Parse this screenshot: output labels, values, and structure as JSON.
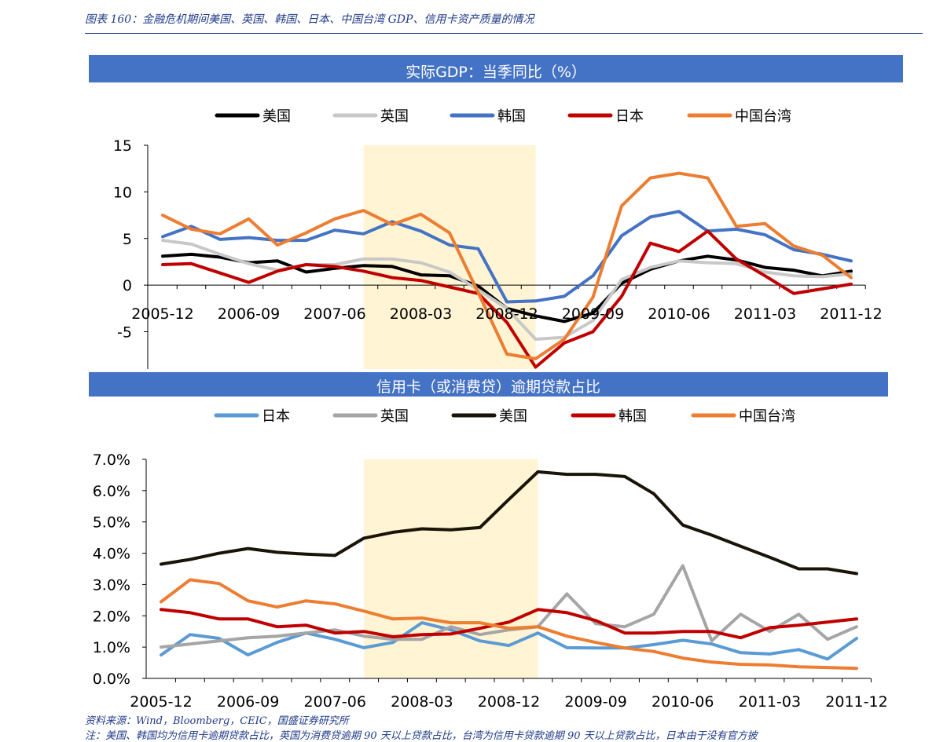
{
  "figure_title": "图表 160：金融危机期间美国、英国、韩国、日本、中国台湾 GDP、信用卡资产质量的情况",
  "source": "资料来源：Wind，Bloomberg，CEIC，国盛证券研究所",
  "note": "注：美国、韩国均为信用卡逾期贷款占比，英国为消费贷逾期 90 天以上贷款占比，台湾为信用卡贷款逾期 90 天以上贷款占比，日本由于没有官方披",
  "chart_data": [
    {
      "type": "line",
      "title": "实际GDP：当季同比（%）",
      "x": [
        "2005-12",
        "2006-03",
        "2006-06",
        "2006-09",
        "2006-12",
        "2007-03",
        "2007-06",
        "2007-09",
        "2007-12",
        "2008-03",
        "2008-06",
        "2008-09",
        "2008-12",
        "2009-03",
        "2009-06",
        "2009-09",
        "2009-12",
        "2010-03",
        "2010-06",
        "2010-09",
        "2010-12",
        "2011-03",
        "2011-06",
        "2011-09",
        "2011-12"
      ],
      "tick_labels": [
        "2005-12",
        "2006-09",
        "2007-06",
        "2008-03",
        "2008-12",
        "2009-09",
        "2010-06",
        "2011-03",
        "2011-12"
      ],
      "ylim": [
        -9,
        15
      ],
      "yticks": [
        15,
        10,
        5,
        0,
        -5
      ],
      "shaded_range": [
        "2007-09",
        "2009-03"
      ],
      "legend_placement": "top",
      "series": [
        {
          "name": "美国",
          "color": "#000000",
          "values": [
            3.1,
            3.3,
            3.0,
            2.4,
            2.6,
            1.4,
            1.8,
            2.1,
            2.0,
            1.1,
            1.0,
            -0.1,
            -2.5,
            -3.3,
            -3.9,
            -3.0,
            0.2,
            1.7,
            2.6,
            3.1,
            2.7,
            1.9,
            1.6,
            1.0,
            1.5
          ]
        },
        {
          "name": "英国",
          "color": "#c8c8c8",
          "values": [
            4.8,
            4.4,
            3.3,
            2.3,
            1.6,
            2.2,
            2.2,
            2.8,
            2.8,
            2.4,
            1.4,
            -0.5,
            -2.5,
            -5.8,
            -5.6,
            -3.8,
            0.6,
            1.9,
            2.6,
            2.4,
            2.3,
            1.4,
            1.0,
            0.9,
            1.2
          ]
        },
        {
          "name": "韩国",
          "color": "#4472c4",
          "values": [
            5.2,
            6.3,
            4.9,
            5.1,
            4.8,
            4.8,
            5.9,
            5.5,
            6.8,
            5.8,
            4.3,
            3.9,
            -1.8,
            -1.7,
            -1.2,
            1.0,
            5.3,
            7.3,
            7.9,
            5.8,
            6.0,
            5.4,
            3.8,
            3.3,
            2.6
          ]
        },
        {
          "name": "日本",
          "color": "#c00000",
          "values": [
            2.2,
            2.3,
            1.3,
            0.3,
            1.5,
            2.2,
            2.0,
            1.5,
            0.8,
            0.5,
            -0.2,
            -0.9,
            -4.0,
            -8.8,
            -6.2,
            -5.0,
            -1.2,
            4.5,
            3.6,
            5.8,
            2.8,
            1.0,
            -0.9,
            -0.4,
            0.1
          ]
        },
        {
          "name": "中国台湾",
          "color": "#ed7d31",
          "values": [
            7.5,
            6.0,
            5.5,
            7.1,
            4.3,
            5.6,
            7.1,
            8.0,
            6.5,
            7.6,
            5.6,
            -0.8,
            -7.4,
            -7.9,
            -5.8,
            -1.3,
            8.5,
            11.5,
            12.0,
            11.5,
            6.3,
            6.6,
            4.2,
            3.2,
            0.8
          ]
        }
      ]
    },
    {
      "type": "line",
      "title": "信用卡（或消费贷）逾期贷款占比",
      "x": [
        "2005-12",
        "2006-03",
        "2006-06",
        "2006-09",
        "2006-12",
        "2007-03",
        "2007-06",
        "2007-09",
        "2007-12",
        "2008-03",
        "2008-06",
        "2008-09",
        "2008-12",
        "2009-03",
        "2009-06",
        "2009-09",
        "2009-12",
        "2010-03",
        "2010-06",
        "2010-09",
        "2010-12",
        "2011-03",
        "2011-06",
        "2011-09",
        "2011-12"
      ],
      "tick_labels": [
        "2005-12",
        "2006-09",
        "2007-06",
        "2008-03",
        "2008-12",
        "2009-09",
        "2010-06",
        "2011-03",
        "2011-12"
      ],
      "ylim": [
        0,
        7
      ],
      "yticks": [
        "7.0%",
        "6.0%",
        "5.0%",
        "4.0%",
        "3.0%",
        "2.0%",
        "1.0%",
        "0.0%"
      ],
      "shaded_range": [
        "2007-09",
        "2009-03"
      ],
      "legend_placement": "top",
      "series": [
        {
          "name": "日本",
          "color": "#5b9bd5",
          "values": [
            0.75,
            1.4,
            1.28,
            0.75,
            1.15,
            1.45,
            1.25,
            0.98,
            1.15,
            1.78,
            1.55,
            1.2,
            1.05,
            1.45,
            0.98,
            0.97,
            0.97,
            1.08,
            1.22,
            1.1,
            0.82,
            0.78,
            0.92,
            0.62,
            1.28
          ]
        },
        {
          "name": "英国",
          "color": "#a5a5a5",
          "values": [
            1.0,
            1.1,
            1.2,
            1.3,
            1.35,
            1.45,
            1.55,
            1.35,
            1.25,
            1.25,
            1.65,
            1.4,
            1.55,
            1.65,
            2.7,
            1.75,
            1.65,
            2.05,
            3.6,
            1.2,
            2.05,
            1.5,
            2.05,
            1.25,
            1.65
          ]
        },
        {
          "name": "美国",
          "color": "#1a1408",
          "values": [
            3.65,
            3.8,
            4.0,
            4.15,
            4.03,
            3.97,
            3.93,
            4.48,
            4.67,
            4.78,
            4.75,
            4.82,
            5.72,
            6.6,
            6.52,
            6.52,
            6.45,
            5.9,
            4.9,
            4.58,
            4.22,
            3.87,
            3.5,
            3.5,
            3.35
          ]
        },
        {
          "name": "韩国",
          "color": "#c00000",
          "values": [
            2.2,
            2.1,
            1.9,
            1.9,
            1.65,
            1.7,
            1.45,
            1.5,
            1.33,
            1.4,
            1.42,
            1.6,
            1.8,
            2.2,
            2.1,
            1.85,
            1.45,
            1.45,
            1.5,
            1.5,
            1.3,
            1.62,
            1.7,
            1.8,
            1.9
          ]
        },
        {
          "name": "中国台湾",
          "color": "#ed7d31",
          "values": [
            2.45,
            3.15,
            3.03,
            2.48,
            2.28,
            2.48,
            2.38,
            2.15,
            1.9,
            1.93,
            1.78,
            1.78,
            1.6,
            1.65,
            1.35,
            1.15,
            0.97,
            0.86,
            0.65,
            0.52,
            0.45,
            0.43,
            0.37,
            0.35,
            0.32
          ]
        }
      ]
    }
  ]
}
